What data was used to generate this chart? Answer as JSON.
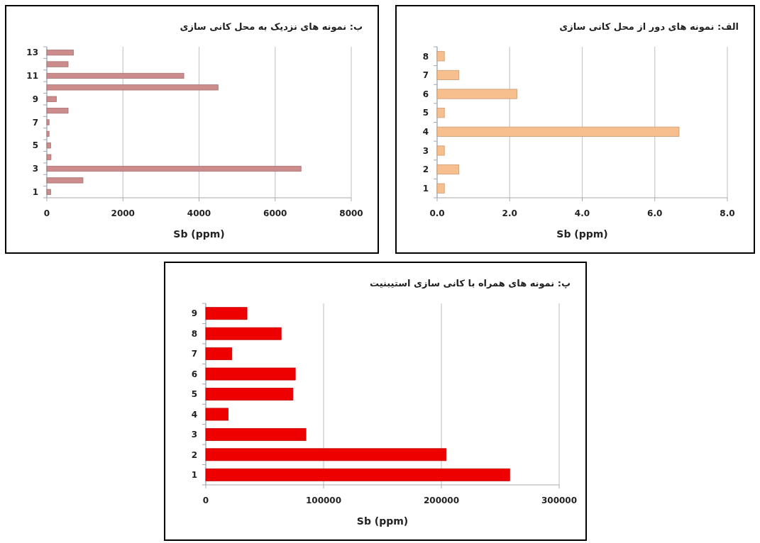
{
  "chart_data": [
    {
      "type": "bar",
      "orientation": "horizontal",
      "title": "ب: نمونه های نزدیک به محل کانی سازی",
      "xlabel": "Sb (ppm)",
      "categories": [
        "13",
        null,
        "11",
        null,
        "9",
        null,
        "7",
        null,
        "5",
        null,
        "3",
        null,
        "1"
      ],
      "values": [
        700,
        560,
        3600,
        4500,
        250,
        560,
        60,
        60,
        100,
        110,
        6680,
        950,
        100
      ],
      "color": "#cc8c8b",
      "xlim": [
        0,
        8000
      ],
      "xticks": [
        0,
        2000,
        4000,
        6000,
        8000
      ],
      "grid": "x"
    },
    {
      "type": "bar",
      "orientation": "horizontal",
      "title": "الف: نمونه های دور از محل کانی سازی",
      "xlabel": "Sb (ppm)",
      "categories": [
        "8",
        "7",
        "6",
        "5",
        "4",
        "3",
        "2",
        "1"
      ],
      "values": [
        0.2,
        0.6,
        2.2,
        0.2,
        6.67,
        0.2,
        0.6,
        0.2
      ],
      "color": "#f8bf8e",
      "xlim": [
        0,
        8
      ],
      "xticks": [
        {
          "value": 0,
          "label": "0.0"
        },
        {
          "value": 2,
          "label": "2.0"
        },
        {
          "value": 4,
          "label": "4.0"
        },
        {
          "value": 6,
          "label": "6.0"
        },
        {
          "value": 8,
          "label": "8.0"
        }
      ],
      "grid": "x"
    },
    {
      "type": "bar",
      "orientation": "horizontal",
      "title": "پ: نمونه های همراه با کانی سازی استیبنیت",
      "xlabel": "Sb (ppm)",
      "categories": [
        "9",
        "8",
        "7",
        "6",
        "5",
        "4",
        "3",
        "2",
        "1"
      ],
      "values": [
        35000,
        64000,
        22000,
        76000,
        74000,
        19000,
        85000,
        204000,
        258000
      ],
      "color": "#ee0000",
      "xlim": [
        0,
        300000
      ],
      "xticks": [
        0,
        100000,
        200000,
        300000
      ],
      "grid": "x"
    }
  ]
}
